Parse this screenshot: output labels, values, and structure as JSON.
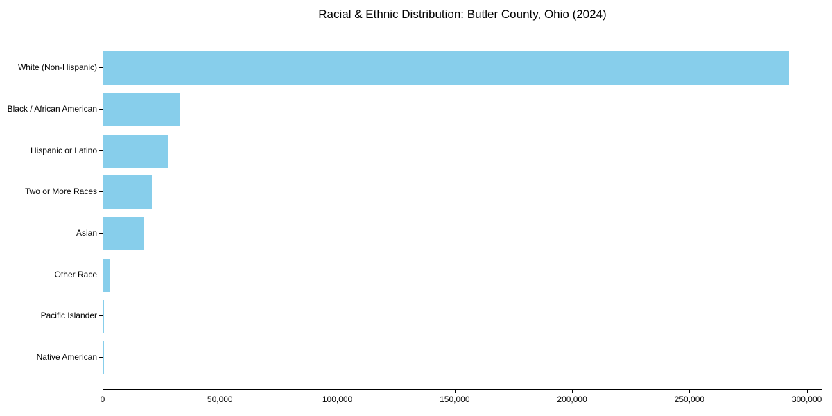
{
  "title": "Racial & Ethnic Distribution: Butler County, Ohio (2024)",
  "colors": {
    "bar": "#87CEEB",
    "text": "#000000",
    "spine": "#000000",
    "background": "#FFFFFF"
  },
  "chart_data": {
    "type": "bar",
    "orientation": "horizontal",
    "title": "Racial & Ethnic Distribution: Butler County, Ohio (2024)",
    "categories": [
      "White (Non-Hispanic)",
      "Black / African American",
      "Hispanic or Latino",
      "Two or More Races",
      "Asian",
      "Other Race",
      "Pacific Islander",
      "Native American"
    ],
    "values": [
      292000,
      32500,
      27600,
      20600,
      17000,
      2900,
      400,
      150
    ],
    "bar_color": "#87CEEB",
    "xlabel": "",
    "ylabel": "",
    "xlim": [
      0,
      306600
    ],
    "x_ticks": [
      0,
      50000,
      100000,
      150000,
      200000,
      250000,
      300000
    ],
    "x_tick_labels": [
      "0",
      "50,000",
      "100,000",
      "150,000",
      "200,000",
      "250,000",
      "300,000"
    ],
    "grid": false,
    "legend": null,
    "sort_order": "descending"
  }
}
